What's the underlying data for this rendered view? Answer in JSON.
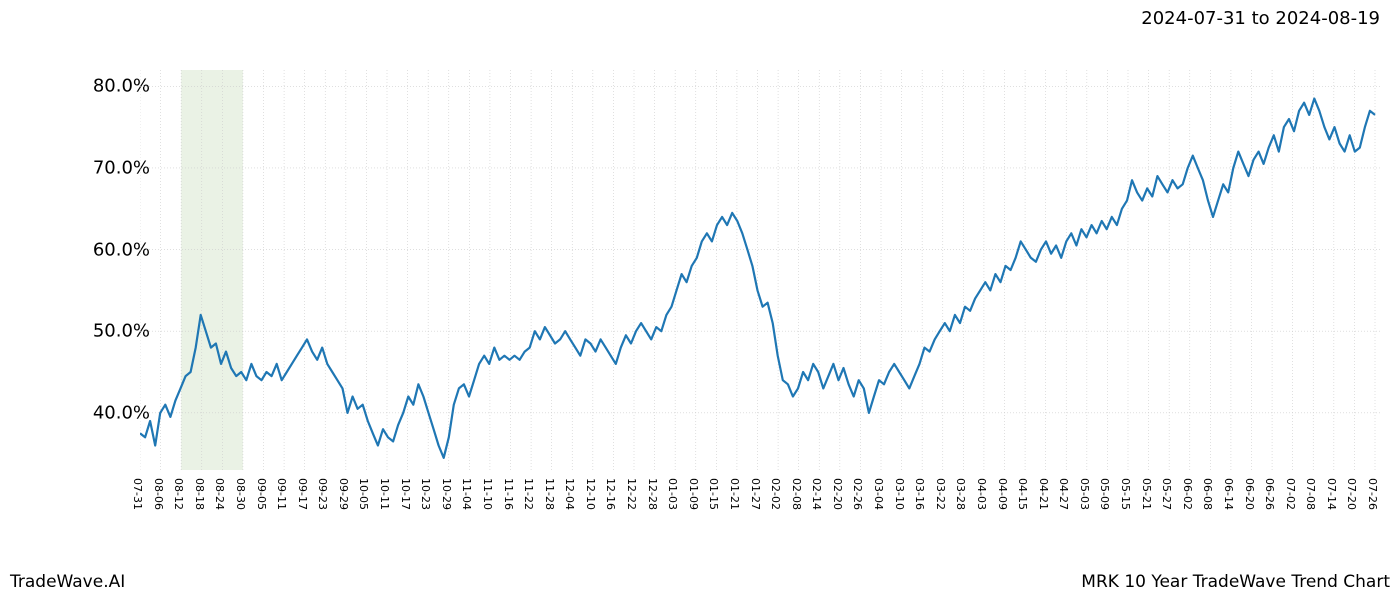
{
  "header": {
    "date_range": "2024-07-31 to 2024-08-19"
  },
  "footer": {
    "left": "TradeWave.AI",
    "right": "MRK 10 Year TradeWave Trend Chart"
  },
  "chart": {
    "type": "line",
    "background_color": "#ffffff",
    "line_color": "#1f77b4",
    "line_width": 2.2,
    "grid_color": "#cccccc",
    "grid_dash": "1,2",
    "highlight_fill": "#d8e8d0",
    "highlight_opacity": 0.55,
    "highlight_from_index": 2,
    "highlight_to_index": 5,
    "axis_fontsize_y": 18,
    "axis_fontsize_x": 11,
    "ylim": [
      33,
      82
    ],
    "y_ticks": [
      40,
      50,
      60,
      70,
      80
    ],
    "y_tick_labels": [
      "40.0%",
      "50.0%",
      "60.0%",
      "70.0%",
      "80.0%"
    ],
    "x_labels": [
      "07-31",
      "08-06",
      "08-12",
      "08-18",
      "08-24",
      "08-30",
      "09-05",
      "09-11",
      "09-17",
      "09-23",
      "09-29",
      "10-05",
      "10-11",
      "10-17",
      "10-23",
      "10-29",
      "11-04",
      "11-10",
      "11-16",
      "11-22",
      "11-28",
      "12-04",
      "12-10",
      "12-16",
      "12-22",
      "12-28",
      "01-03",
      "01-09",
      "01-15",
      "01-21",
      "01-27",
      "02-02",
      "02-08",
      "02-14",
      "02-20",
      "02-26",
      "03-04",
      "03-10",
      "03-16",
      "03-22",
      "03-28",
      "04-03",
      "04-09",
      "04-15",
      "04-21",
      "04-27",
      "05-03",
      "05-09",
      "05-15",
      "05-21",
      "05-27",
      "06-02",
      "06-08",
      "06-14",
      "06-20",
      "06-26",
      "07-02",
      "07-08",
      "07-14",
      "07-20",
      "07-26"
    ],
    "series": [
      37.5,
      37.0,
      39.0,
      36.0,
      40.0,
      41.0,
      39.5,
      41.5,
      43.0,
      44.5,
      45.0,
      48.0,
      52.0,
      50.0,
      48.0,
      48.5,
      46.0,
      47.5,
      45.5,
      44.5,
      45.0,
      44.0,
      46.0,
      44.5,
      44.0,
      45.0,
      44.5,
      46.0,
      44.0,
      45.0,
      46.0,
      47.0,
      48.0,
      49.0,
      47.5,
      46.5,
      48.0,
      46.0,
      45.0,
      44.0,
      43.0,
      40.0,
      42.0,
      40.5,
      41.0,
      39.0,
      37.5,
      36.0,
      38.0,
      37.0,
      36.5,
      38.5,
      40.0,
      42.0,
      41.0,
      43.5,
      42.0,
      40.0,
      38.0,
      36.0,
      34.5,
      37.0,
      41.0,
      43.0,
      43.5,
      42.0,
      44.0,
      46.0,
      47.0,
      46.0,
      48.0,
      46.5,
      47.0,
      46.5,
      47.0,
      46.5,
      47.5,
      48.0,
      50.0,
      49.0,
      50.5,
      49.5,
      48.5,
      49.0,
      50.0,
      49.0,
      48.0,
      47.0,
      49.0,
      48.5,
      47.5,
      49.0,
      48.0,
      47.0,
      46.0,
      48.0,
      49.5,
      48.5,
      50.0,
      51.0,
      50.0,
      49.0,
      50.5,
      50.0,
      52.0,
      53.0,
      55.0,
      57.0,
      56.0,
      58.0,
      59.0,
      61.0,
      62.0,
      61.0,
      63.0,
      64.0,
      63.0,
      64.5,
      63.5,
      62.0,
      60.0,
      58.0,
      55.0,
      53.0,
      53.5,
      51.0,
      47.0,
      44.0,
      43.5,
      42.0,
      43.0,
      45.0,
      44.0,
      46.0,
      45.0,
      43.0,
      44.5,
      46.0,
      44.0,
      45.5,
      43.5,
      42.0,
      44.0,
      43.0,
      40.0,
      42.0,
      44.0,
      43.5,
      45.0,
      46.0,
      45.0,
      44.0,
      43.0,
      44.5,
      46.0,
      48.0,
      47.5,
      49.0,
      50.0,
      51.0,
      50.0,
      52.0,
      51.0,
      53.0,
      52.5,
      54.0,
      55.0,
      56.0,
      55.0,
      57.0,
      56.0,
      58.0,
      57.5,
      59.0,
      61.0,
      60.0,
      59.0,
      58.5,
      60.0,
      61.0,
      59.5,
      60.5,
      59.0,
      61.0,
      62.0,
      60.5,
      62.5,
      61.5,
      63.0,
      62.0,
      63.5,
      62.5,
      64.0,
      63.0,
      65.0,
      66.0,
      68.5,
      67.0,
      66.0,
      67.5,
      66.5,
      69.0,
      68.0,
      67.0,
      68.5,
      67.5,
      68.0,
      70.0,
      71.5,
      70.0,
      68.5,
      66.0,
      64.0,
      66.0,
      68.0,
      67.0,
      70.0,
      72.0,
      70.5,
      69.0,
      71.0,
      72.0,
      70.5,
      72.5,
      74.0,
      72.0,
      75.0,
      76.0,
      74.5,
      77.0,
      78.0,
      76.5,
      78.5,
      77.0,
      75.0,
      73.5,
      75.0,
      73.0,
      72.0,
      74.0,
      72.0,
      72.5,
      75.0,
      77.0,
      76.5
    ]
  }
}
